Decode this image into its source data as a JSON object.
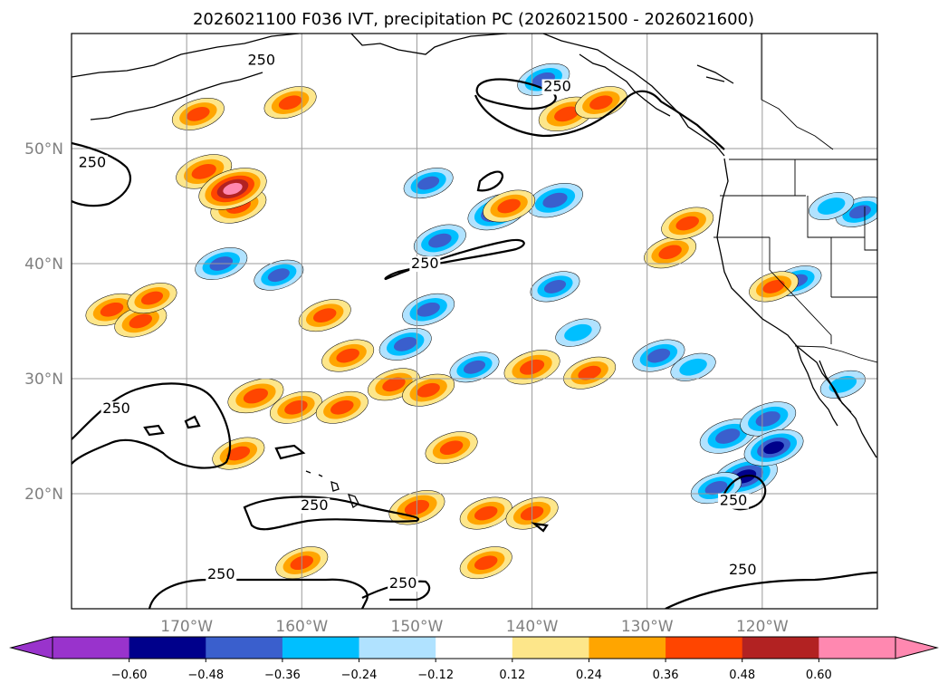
{
  "figure": {
    "title": "2026021100 F036 IVT, precipitation PC (2026021500 - 2026021600)"
  },
  "map": {
    "projection": "cylindrical",
    "lon_range": [
      -180,
      -110
    ],
    "lat_range": [
      10,
      60
    ],
    "lon_ticks": [
      {
        "lon": -170,
        "label": "170°W"
      },
      {
        "lon": -160,
        "label": "160°W"
      },
      {
        "lon": -150,
        "label": "150°W"
      },
      {
        "lon": -140,
        "label": "140°W"
      },
      {
        "lon": -130,
        "label": "130°W"
      },
      {
        "lon": -120,
        "label": "120°W"
      }
    ],
    "lat_ticks": [
      {
        "lat": 20,
        "label": "20°N"
      },
      {
        "lat": 30,
        "label": "30°N"
      },
      {
        "lat": 40,
        "label": "40°N"
      },
      {
        "lat": 50,
        "label": "50°N"
      }
    ],
    "ivt_contour": {
      "level": "250",
      "label_positions": [
        {
          "lon": -163.5,
          "lat": 57.3
        },
        {
          "lon": -137.8,
          "lat": 55.0
        },
        {
          "lon": -178.2,
          "lat": 48.4
        },
        {
          "lon": -176.1,
          "lat": 27.0
        },
        {
          "lon": -149.3,
          "lat": 39.6
        },
        {
          "lon": -158.9,
          "lat": 18.6
        },
        {
          "lon": -167.0,
          "lat": 12.6
        },
        {
          "lon": -151.2,
          "lat": 11.8
        },
        {
          "lon": -121.7,
          "lat": 13.0
        },
        {
          "lon": -122.5,
          "lat": 19.0
        }
      ]
    }
  },
  "chart_data": {
    "type": "map-contour",
    "title": "2026021100 F036 IVT, precipitation PC (2026021500 - 2026021600)",
    "variables": [
      "IVT (contour, 250 kg/m/s)",
      "precipitation PC (filled)"
    ],
    "colorbar": {
      "ticks": [
        "−0.60",
        "−0.48",
        "−0.36",
        "−0.24",
        "−0.12",
        "0.12",
        "0.24",
        "0.36",
        "0.48",
        "0.60"
      ],
      "bounds": [
        -0.6,
        -0.48,
        -0.36,
        -0.24,
        -0.12,
        0.12,
        0.24,
        0.36,
        0.48,
        0.6
      ],
      "colors": [
        "#9933cc",
        "#00008b",
        "#3a5fcd",
        "#00bfff",
        "#b0e2ff",
        "#ffffff",
        "#fde68a",
        "#ffa500",
        "#ff4500",
        "#b22222",
        "#ff88b0"
      ],
      "extend": "both"
    },
    "precip_features": [
      {
        "lon": -176.5,
        "lat": 36.0,
        "v": 0.4
      },
      {
        "lon": -174.0,
        "lat": 35.0,
        "v": 0.4
      },
      {
        "lon": -173.0,
        "lat": 37.0,
        "v": 0.36
      },
      {
        "lon": -168.5,
        "lat": 48.0,
        "v": 0.45
      },
      {
        "lon": -165.5,
        "lat": 45.0,
        "v": 0.45
      },
      {
        "lon": -166.0,
        "lat": 46.5,
        "v": 0.62
      },
      {
        "lon": -169.0,
        "lat": 53.0,
        "v": 0.4
      },
      {
        "lon": -161.0,
        "lat": 54.0,
        "v": 0.4
      },
      {
        "lon": -167.0,
        "lat": 40.0,
        "v": -0.4
      },
      {
        "lon": -162.0,
        "lat": 39.0,
        "v": -0.36
      },
      {
        "lon": -164.0,
        "lat": 28.5,
        "v": 0.45
      },
      {
        "lon": -160.5,
        "lat": 27.5,
        "v": 0.4
      },
      {
        "lon": -156.5,
        "lat": 27.5,
        "v": 0.4
      },
      {
        "lon": -152.0,
        "lat": 29.5,
        "v": 0.4
      },
      {
        "lon": -149.0,
        "lat": 29.0,
        "v": 0.4
      },
      {
        "lon": -156.0,
        "lat": 32.0,
        "v": 0.4
      },
      {
        "lon": -150.0,
        "lat": 18.8,
        "v": 0.45
      },
      {
        "lon": -144.0,
        "lat": 18.3,
        "v": 0.4
      },
      {
        "lon": -140.0,
        "lat": 18.3,
        "v": 0.4
      },
      {
        "lon": -140.0,
        "lat": 31.0,
        "v": 0.45
      },
      {
        "lon": -135.0,
        "lat": 30.5,
        "v": 0.4
      },
      {
        "lon": -143.0,
        "lat": 44.5,
        "v": -0.5
      },
      {
        "lon": -148.0,
        "lat": 42.0,
        "v": -0.4
      },
      {
        "lon": -138.0,
        "lat": 45.5,
        "v": -0.45
      },
      {
        "lon": -149.0,
        "lat": 36.0,
        "v": -0.4
      },
      {
        "lon": -151.0,
        "lat": 33.0,
        "v": -0.4
      },
      {
        "lon": -149.0,
        "lat": 47.0,
        "v": -0.36
      },
      {
        "lon": -142.0,
        "lat": 45.0,
        "v": 0.4
      },
      {
        "lon": -137.0,
        "lat": 53.0,
        "v": 0.45
      },
      {
        "lon": -134.0,
        "lat": 54.0,
        "v": 0.4
      },
      {
        "lon": -128.0,
        "lat": 41.0,
        "v": 0.4
      },
      {
        "lon": -126.5,
        "lat": 43.5,
        "v": 0.4
      },
      {
        "lon": -139.0,
        "lat": 56.0,
        "v": -0.4
      },
      {
        "lon": -123.0,
        "lat": 25.0,
        "v": -0.45
      },
      {
        "lon": -119.5,
        "lat": 26.5,
        "v": -0.45
      },
      {
        "lon": -121.5,
        "lat": 21.5,
        "v": -0.58
      },
      {
        "lon": -119.0,
        "lat": 24.0,
        "v": -0.5
      },
      {
        "lon": -124.0,
        "lat": 20.5,
        "v": -0.38
      },
      {
        "lon": -129.0,
        "lat": 32.0,
        "v": -0.4
      },
      {
        "lon": -126.0,
        "lat": 31.0,
        "v": -0.3
      },
      {
        "lon": -136.0,
        "lat": 34.0,
        "v": -0.3
      },
      {
        "lon": -138.0,
        "lat": 38.0,
        "v": -0.36
      },
      {
        "lon": -117.0,
        "lat": 38.5,
        "v": -0.36
      },
      {
        "lon": -111.5,
        "lat": 44.5,
        "v": -0.36
      },
      {
        "lon": -114.0,
        "lat": 45.0,
        "v": -0.3
      },
      {
        "lon": -119.0,
        "lat": 38.0,
        "v": 0.36
      },
      {
        "lon": -160.0,
        "lat": 14.0,
        "v": 0.4
      },
      {
        "lon": -144.0,
        "lat": 14.0,
        "v": 0.4
      },
      {
        "lon": -147.0,
        "lat": 24.0,
        "v": 0.4
      },
      {
        "lon": -165.5,
        "lat": 23.5,
        "v": 0.4
      },
      {
        "lon": -158.0,
        "lat": 35.5,
        "v": 0.4
      },
      {
        "lon": -145.0,
        "lat": 31.0,
        "v": -0.36
      },
      {
        "lon": -113.0,
        "lat": 29.5,
        "v": -0.3
      }
    ]
  }
}
